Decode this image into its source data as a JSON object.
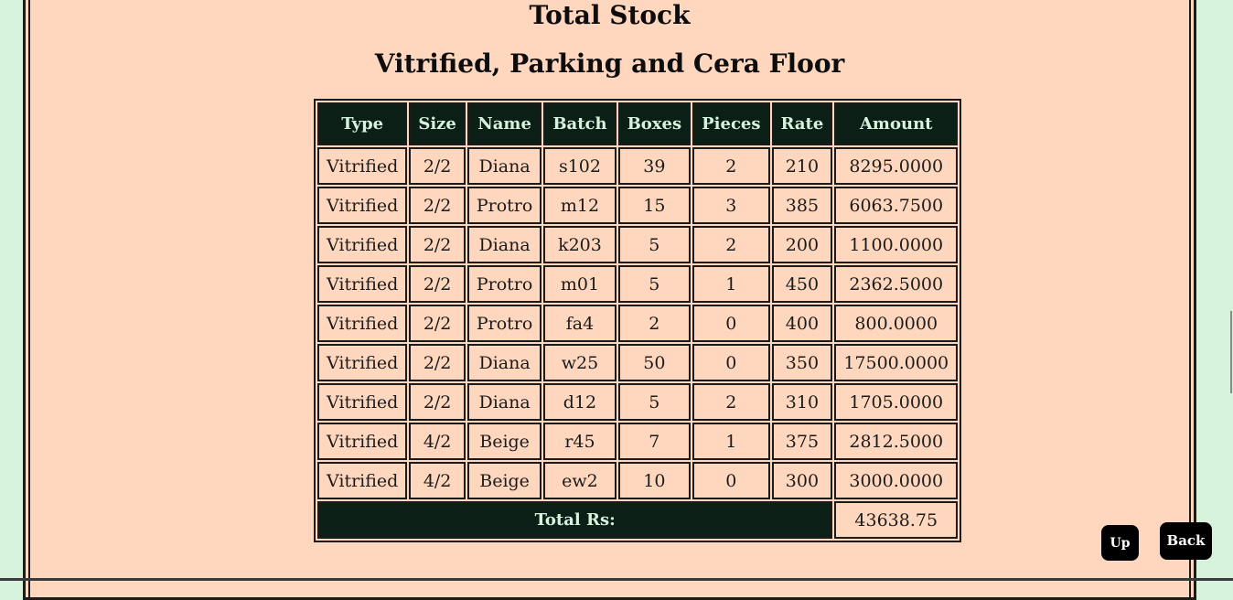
{
  "page": {
    "title": "Total Stock",
    "subtitle": "Vitrified, Parking and Cera Floor"
  },
  "table": {
    "headers": [
      "Type",
      "Size",
      "Name",
      "Batch",
      "Boxes",
      "Pieces",
      "Rate",
      "Amount"
    ],
    "rows": [
      [
        "Vitrified",
        "2/2",
        "Diana",
        "s102",
        "39",
        "2",
        "210",
        "8295.0000"
      ],
      [
        "Vitrified",
        "2/2",
        "Protro",
        "m12",
        "15",
        "3",
        "385",
        "6063.7500"
      ],
      [
        "Vitrified",
        "2/2",
        "Diana",
        "k203",
        "5",
        "2",
        "200",
        "1100.0000"
      ],
      [
        "Vitrified",
        "2/2",
        "Protro",
        "m01",
        "5",
        "1",
        "450",
        "2362.5000"
      ],
      [
        "Vitrified",
        "2/2",
        "Protro",
        "fa4",
        "2",
        "0",
        "400",
        "800.0000"
      ],
      [
        "Vitrified",
        "2/2",
        "Diana",
        "w25",
        "50",
        "0",
        "350",
        "17500.0000"
      ],
      [
        "Vitrified",
        "2/2",
        "Diana",
        "d12",
        "5",
        "2",
        "310",
        "1705.0000"
      ],
      [
        "Vitrified",
        "4/2",
        "Beige",
        "r45",
        "7",
        "1",
        "375",
        "2812.5000"
      ],
      [
        "Vitrified",
        "4/2",
        "Beige",
        "ew2",
        "10",
        "0",
        "300",
        "3000.0000"
      ]
    ],
    "total_label": "Total Rs:",
    "total_value": "43638.75"
  },
  "buttons": {
    "up_label": "Up",
    "back_label": "Back"
  },
  "colors": {
    "page_background": "#d7f2dc",
    "panel_background": "#ffd7be",
    "header_background": "#0b1f17",
    "header_text": "#d7f2dc",
    "button_background": "#000000"
  }
}
